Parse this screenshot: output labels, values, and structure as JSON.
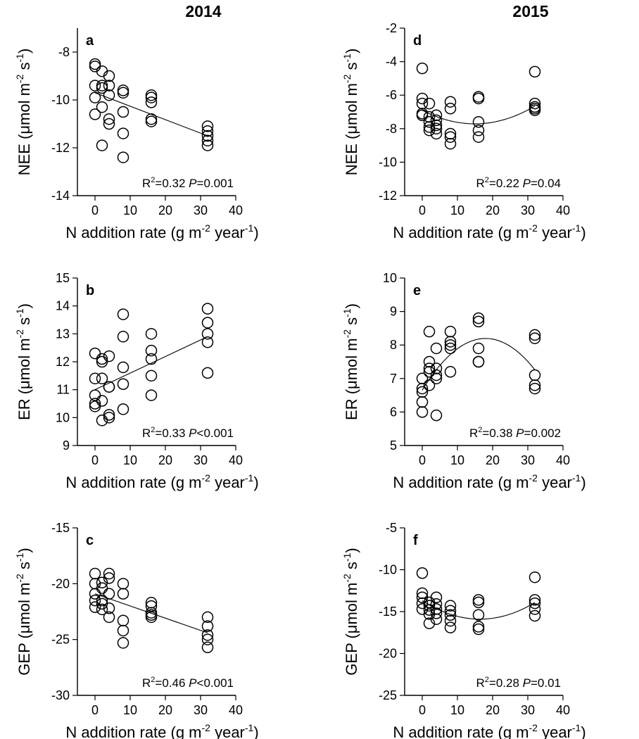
{
  "figure": {
    "column_titles": [
      "2014",
      "2015"
    ]
  },
  "chart_data": [
    {
      "type": "scatter",
      "panel": "a",
      "column": 0,
      "row": 0,
      "ylabel": "NEE (μmol m^-2 s^-1)",
      "ylabel_main": "NEE (",
      "xlabel_main": "N addition rate (g m",
      "xlim": [
        -5,
        40
      ],
      "ylim": [
        -14,
        -7
      ],
      "xticks": [
        0,
        10,
        20,
        30,
        40
      ],
      "yticks": [
        -14,
        -12,
        -10,
        -8
      ],
      "x": [
        0,
        0,
        0,
        0,
        0,
        2,
        2,
        2,
        2,
        2,
        4,
        4,
        4,
        4,
        4,
        8,
        8,
        8,
        8,
        8,
        16,
        16,
        16,
        16,
        16,
        32,
        32,
        32,
        32,
        32
      ],
      "y": [
        -8.5,
        -8.6,
        -9.4,
        -9.9,
        -10.6,
        -8.8,
        -9.4,
        -9.5,
        -10.3,
        -11.9,
        -9.0,
        -9.4,
        -9.8,
        -10.8,
        -11.0,
        -9.6,
        -9.7,
        -10.5,
        -11.4,
        -12.4,
        -9.8,
        -9.9,
        -10.1,
        -10.8,
        -10.9,
        -11.1,
        -11.3,
        -11.5,
        -11.7,
        -11.9
      ],
      "fit": {
        "kind": "linear",
        "x": [
          0,
          32
        ],
        "y": [
          -9.7,
          -11.5
        ]
      },
      "r2": "0.32",
      "p": "=0.001"
    },
    {
      "type": "scatter",
      "panel": "d",
      "column": 1,
      "row": 0,
      "ylabel": "NEE (μmol m^-2 s^-1)",
      "ylabel_main": "NEE (",
      "xlabel_main": "N addition rate (g m",
      "xlim": [
        -5,
        40
      ],
      "ylim": [
        -12,
        -2
      ],
      "xticks": [
        0,
        10,
        20,
        30,
        40
      ],
      "yticks": [
        -12,
        -10,
        -8,
        -6,
        -4,
        -2
      ],
      "x": [
        0,
        0,
        0,
        0,
        0,
        2,
        2,
        2,
        2,
        2,
        4,
        4,
        4,
        4,
        4,
        8,
        8,
        8,
        8,
        8,
        16,
        16,
        16,
        16,
        16,
        32,
        32,
        32,
        32,
        32
      ],
      "y": [
        -4.4,
        -6.2,
        -6.5,
        -7.1,
        -7.2,
        -6.5,
        -7.3,
        -7.6,
        -7.9,
        -8.1,
        -7.2,
        -7.5,
        -7.8,
        -8.0,
        -8.3,
        -6.4,
        -6.8,
        -8.3,
        -8.5,
        -8.9,
        -6.1,
        -6.2,
        -7.6,
        -8.1,
        -8.5,
        -4.6,
        -6.5,
        -6.7,
        -6.8,
        -6.9
      ],
      "fit": {
        "kind": "quadratic",
        "coef": [
          -6.9,
          -0.1088,
          0.00364
        ],
        "x_range": [
          0,
          32
        ]
      },
      "r2": "0.22",
      "p": "=0.04"
    },
    {
      "type": "scatter",
      "panel": "b",
      "column": 0,
      "row": 1,
      "ylabel": "ER (μmol m^-2 s^-1)",
      "ylabel_main": "ER (",
      "xlabel_main": "N addition rate (g m",
      "xlim": [
        -5,
        40
      ],
      "ylim": [
        9,
        15
      ],
      "xticks": [
        0,
        10,
        20,
        30,
        40
      ],
      "yticks": [
        9,
        10,
        11,
        12,
        13,
        14,
        15
      ],
      "x": [
        0,
        0,
        0,
        0,
        0,
        2,
        2,
        2,
        2,
        2,
        4,
        4,
        4,
        4,
        4,
        8,
        8,
        8,
        8,
        8,
        16,
        16,
        16,
        16,
        16,
        32,
        32,
        32,
        32,
        32
      ],
      "y": [
        12.3,
        11.4,
        10.8,
        10.5,
        10.4,
        12.1,
        12.0,
        11.4,
        10.6,
        9.9,
        12.2,
        11.1,
        11.1,
        10.1,
        10.0,
        13.7,
        12.9,
        11.8,
        11.2,
        10.3,
        13.0,
        12.4,
        12.1,
        11.5,
        10.8,
        13.9,
        13.4,
        13.0,
        12.7,
        11.6
      ],
      "fit": {
        "kind": "linear",
        "x": [
          0,
          32
        ],
        "y": [
          11.0,
          12.9
        ]
      },
      "r2": "0.33",
      "p": "<0.001"
    },
    {
      "type": "scatter",
      "panel": "e",
      "column": 1,
      "row": 1,
      "ylabel": "ER (μmol m^-2 s^-1)",
      "ylabel_main": "ER (",
      "xlabel_main": "N addition rate (g m",
      "xlim": [
        -5,
        40
      ],
      "ylim": [
        5,
        10
      ],
      "xticks": [
        0,
        10,
        20,
        30,
        40
      ],
      "yticks": [
        5,
        6,
        7,
        8,
        9,
        10
      ],
      "x": [
        0,
        0,
        0,
        0,
        0,
        2,
        2,
        2,
        2,
        2,
        4,
        4,
        4,
        4,
        4,
        8,
        8,
        8,
        8,
        8,
        16,
        16,
        16,
        16,
        16,
        32,
        32,
        32,
        32,
        32
      ],
      "y": [
        7.0,
        6.7,
        6.6,
        6.3,
        6.0,
        8.4,
        7.5,
        7.3,
        7.2,
        6.8,
        7.9,
        7.3,
        7.1,
        7.0,
        5.9,
        8.4,
        8.1,
        8.0,
        7.9,
        7.2,
        8.8,
        8.7,
        7.9,
        7.5,
        7.5,
        8.3,
        8.2,
        7.1,
        6.8,
        6.7
      ],
      "fit": {
        "kind": "quadratic",
        "coef": [
          6.65,
          0.1717,
          -0.00477
        ],
        "x_range": [
          0,
          32
        ]
      },
      "r2": "0.38",
      "p": "=0.002"
    },
    {
      "type": "scatter",
      "panel": "c",
      "column": 0,
      "row": 2,
      "ylabel": "GEP (μmol m^-2 s^-1)",
      "ylabel_main": "GEP (",
      "xlabel_main": "N addition rate (g m",
      "xlim": [
        -5,
        40
      ],
      "ylim": [
        -30,
        -15
      ],
      "xticks": [
        0,
        10,
        20,
        30,
        40
      ],
      "yticks": [
        -30,
        -25,
        -20,
        -15
      ],
      "x": [
        0,
        0,
        0,
        0,
        0,
        2,
        2,
        2,
        2,
        2,
        4,
        4,
        4,
        4,
        4,
        8,
        8,
        8,
        8,
        8,
        16,
        16,
        16,
        16,
        16,
        32,
        32,
        32,
        32,
        32
      ],
      "y": [
        -19.1,
        -20.0,
        -20.9,
        -21.5,
        -22.1,
        -19.9,
        -20.4,
        -21.5,
        -21.8,
        -22.3,
        -19.1,
        -19.5,
        -20.9,
        -22.2,
        -23.0,
        -20.0,
        -20.9,
        -23.3,
        -24.2,
        -25.3,
        -21.7,
        -22.0,
        -22.6,
        -22.8,
        -23.0,
        -23.0,
        -23.8,
        -24.6,
        -25.0,
        -25.7
      ],
      "fit": {
        "kind": "linear",
        "x": [
          0,
          32
        ],
        "y": [
          -20.9,
          -24.4
        ]
      },
      "r2": "0.46",
      "p": "<0.001"
    },
    {
      "type": "scatter",
      "panel": "f",
      "column": 1,
      "row": 2,
      "ylabel": "GEP (μmol m^-2 s^-1)",
      "ylabel_main": "GEP (",
      "xlabel_main": "N addition rate (g m",
      "xlim": [
        -5,
        40
      ],
      "ylim": [
        -25,
        -5
      ],
      "xticks": [
        0,
        10,
        20,
        30,
        40
      ],
      "yticks": [
        -25,
        -20,
        -15,
        -10,
        -5
      ],
      "x": [
        0,
        0,
        0,
        0,
        0,
        2,
        2,
        2,
        2,
        2,
        4,
        4,
        4,
        4,
        4,
        8,
        8,
        8,
        8,
        8,
        16,
        16,
        16,
        16,
        16,
        32,
        32,
        32,
        32,
        32
      ],
      "y": [
        -10.4,
        -12.8,
        -13.3,
        -14.0,
        -14.7,
        -13.9,
        -14.3,
        -14.8,
        -15.3,
        -16.4,
        -13.3,
        -14.1,
        -14.7,
        -15.2,
        -15.9,
        -14.3,
        -14.9,
        -15.4,
        -16.1,
        -16.9,
        -13.6,
        -13.9,
        -15.4,
        -16.8,
        -17.1,
        -10.9,
        -13.6,
        -14.0,
        -14.7,
        -15.5
      ],
      "fit": {
        "kind": "quadratic",
        "coef": [
          -13.7,
          -0.2681,
          0.00817
        ],
        "x_range": [
          0,
          32
        ]
      },
      "r2": "0.28",
      "p": "=0.01"
    }
  ]
}
